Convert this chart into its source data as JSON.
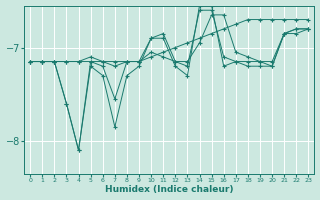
{
  "xlabel": "Humidex (Indice chaleur)",
  "xlim": [
    -0.5,
    23.5
  ],
  "ylim": [
    -8.35,
    -6.55
  ],
  "yticks": [
    -8,
    -7
  ],
  "xticks": [
    0,
    1,
    2,
    3,
    4,
    5,
    6,
    7,
    8,
    9,
    10,
    11,
    12,
    13,
    14,
    15,
    16,
    17,
    18,
    19,
    20,
    21,
    22,
    23
  ],
  "bg_color": "#cce8e0",
  "line_color": "#1a7a6e",
  "grid_color": "#ffffff",
  "series": [
    {
      "x": [
        0,
        1,
        2,
        3,
        4,
        5,
        6,
        7,
        8,
        9,
        10,
        11,
        12,
        13,
        14,
        15,
        16,
        17,
        18,
        19,
        20,
        21,
        22,
        23
      ],
      "y": [
        -7.15,
        -7.15,
        -7.15,
        -7.15,
        -7.15,
        -7.15,
        -7.15,
        -7.15,
        -7.15,
        -7.15,
        -7.1,
        -7.05,
        -7.0,
        -6.95,
        -6.9,
        -6.85,
        -6.8,
        -6.75,
        -6.7,
        -6.7,
        -6.7,
        -6.7,
        -6.7,
        -6.7
      ]
    },
    {
      "x": [
        0,
        1,
        2,
        3,
        4,
        5,
        6,
        7,
        8,
        9,
        10,
        11,
        12,
        13,
        14,
        15,
        16,
        17,
        18,
        19,
        20,
        21,
        22,
        23
      ],
      "y": [
        -7.15,
        -7.15,
        -7.15,
        -7.6,
        -8.1,
        -7.15,
        -7.2,
        -7.55,
        -7.15,
        -7.15,
        -6.9,
        -6.85,
        -7.15,
        -7.2,
        -6.6,
        -6.6,
        -7.1,
        -7.15,
        -7.15,
        -7.15,
        -7.2,
        -6.85,
        -6.85,
        -6.8
      ]
    },
    {
      "x": [
        0,
        1,
        2,
        3,
        4,
        5,
        6,
        7,
        8,
        9,
        10,
        11,
        12,
        13,
        14,
        15,
        16,
        17,
        18,
        19,
        20,
        21,
        22,
        23
      ],
      "y": [
        -7.15,
        -7.15,
        -7.15,
        -7.15,
        -7.15,
        -7.1,
        -7.15,
        -7.2,
        -7.15,
        -7.15,
        -7.05,
        -7.1,
        -7.15,
        -7.15,
        -6.95,
        -6.65,
        -6.65,
        -7.05,
        -7.1,
        -7.15,
        -7.15,
        -6.85,
        -6.8,
        -6.8
      ]
    },
    {
      "x": [
        0,
        1,
        2,
        3,
        4,
        5,
        6,
        7,
        8,
        9,
        10,
        11,
        12,
        13,
        14,
        15,
        16,
        17,
        18,
        19,
        20,
        21,
        22,
        23
      ],
      "y": [
        -7.15,
        -7.15,
        -7.15,
        -7.6,
        -8.1,
        -7.2,
        -7.3,
        -7.85,
        -7.3,
        -7.2,
        -6.9,
        -6.9,
        -7.2,
        -7.3,
        -6.55,
        -6.55,
        -7.2,
        -7.15,
        -7.2,
        -7.2,
        -7.2,
        -6.85,
        -6.8,
        -6.8
      ]
    }
  ]
}
